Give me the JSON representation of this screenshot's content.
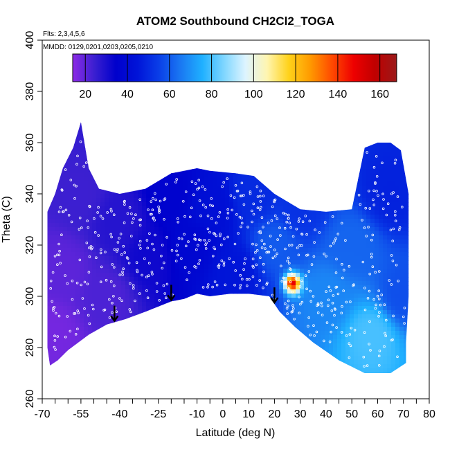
{
  "chart_data": {
    "type": "heatmap",
    "title": "ATOM2 Southbound CH2Cl2_TOGA",
    "flights_note": "Flts: 2,3,4,5,6",
    "dates_note": "MMDD: 0129,0201,0203,0205,0210",
    "xlabel": "Latitude (deg N)",
    "ylabel": "Theta (C)",
    "xlim": [
      -70,
      80
    ],
    "ylim": [
      260,
      400
    ],
    "x_ticks": [
      -70,
      -55,
      -40,
      -25,
      -10,
      0,
      10,
      20,
      30,
      40,
      50,
      60,
      70,
      80
    ],
    "x_tick_labels": [
      "-70",
      "-55",
      "-40",
      "-25",
      "-10",
      "0",
      "10",
      "20",
      "30",
      "40",
      "50",
      "60",
      "70",
      "80"
    ],
    "x_minor_ticks": [
      -65,
      -60,
      -50,
      -45,
      -35,
      -30,
      -20,
      -15,
      -5,
      5,
      15,
      25,
      35,
      45,
      55,
      65,
      75
    ],
    "y_ticks": [
      260,
      280,
      300,
      320,
      340,
      360,
      380,
      400
    ],
    "y_tick_labels": [
      "260",
      "280",
      "300",
      "320",
      "340",
      "360",
      "380",
      "400"
    ],
    "colorbar": {
      "range": [
        14,
        168
      ],
      "tick_values": [
        20,
        40,
        60,
        80,
        100,
        120,
        140,
        160
      ],
      "tick_labels": [
        "20",
        "40",
        "60",
        "80",
        "100",
        "120",
        "140",
        "160"
      ],
      "colors": [
        "#8c2be6",
        "#3a1fd0",
        "#0000cc",
        "#0014d8",
        "#0a3fe8",
        "#1a78f2",
        "#1fb0ff",
        "#7fd6ff",
        "#ddf4ff",
        "#fff5b0",
        "#ffd21a",
        "#ff9a00",
        "#ff4a00",
        "#ee0000",
        "#c00000",
        "#9a1a1a"
      ]
    },
    "arrows_lat": [
      -42,
      -20,
      20
    ],
    "hotspot": {
      "lat": 27,
      "theta": 305,
      "value": 150
    },
    "field_points": [
      {
        "lat": -66,
        "theta": 285,
        "value": 17
      },
      {
        "lat": -62,
        "theta": 310,
        "value": 20
      },
      {
        "lat": -55,
        "theta": 340,
        "value": 24
      },
      {
        "lat": -45,
        "theta": 300,
        "value": 22
      },
      {
        "lat": -40,
        "theta": 330,
        "value": 28
      },
      {
        "lat": -28,
        "theta": 315,
        "value": 32
      },
      {
        "lat": -20,
        "theta": 340,
        "value": 36
      },
      {
        "lat": -12,
        "theta": 320,
        "value": 38
      },
      {
        "lat": -5,
        "theta": 335,
        "value": 42
      },
      {
        "lat": 5,
        "theta": 310,
        "value": 45
      },
      {
        "lat": 12,
        "theta": 340,
        "value": 50
      },
      {
        "lat": 20,
        "theta": 320,
        "value": 60
      },
      {
        "lat": 30,
        "theta": 335,
        "value": 52
      },
      {
        "lat": 40,
        "theta": 300,
        "value": 68
      },
      {
        "lat": 50,
        "theta": 320,
        "value": 62
      },
      {
        "lat": 58,
        "theta": 285,
        "value": 80
      },
      {
        "lat": 65,
        "theta": 340,
        "value": 48
      },
      {
        "lat": 70,
        "theta": 300,
        "value": 58
      }
    ]
  }
}
